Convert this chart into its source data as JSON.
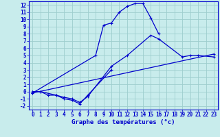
{
  "background_color": "#c8ecec",
  "grid_color": "#9ecece",
  "line_color": "#0000cc",
  "xlabel": "Graphe des températures (°c)",
  "xlim": [
    -0.5,
    23.5
  ],
  "ylim": [
    -2.5,
    12.5
  ],
  "yticks": [
    -2,
    -1,
    0,
    1,
    2,
    3,
    4,
    5,
    6,
    7,
    8,
    9,
    10,
    11,
    12
  ],
  "xticks": [
    0,
    1,
    2,
    3,
    4,
    5,
    6,
    7,
    8,
    9,
    10,
    11,
    12,
    13,
    14,
    15,
    16,
    17,
    18,
    19,
    20,
    21,
    22,
    23
  ],
  "series": [
    {
      "x": [
        0,
        1,
        2,
        3,
        4,
        5,
        6,
        7,
        10
      ],
      "y": [
        0,
        0,
        -0.5,
        -0.5,
        -1,
        -1.2,
        -1.7,
        -0.5,
        3.0
      ]
    },
    {
      "x": [
        0,
        1,
        3,
        4,
        5,
        6,
        7,
        10,
        12,
        15,
        16,
        19,
        20,
        21,
        23
      ],
      "y": [
        0,
        0,
        -0.5,
        -0.8,
        -1.0,
        -1.5,
        -0.7,
        3.5,
        5.0,
        7.8,
        7.3,
        4.8,
        5.0,
        5.0,
        4.8
      ]
    },
    {
      "x": [
        0,
        23
      ],
      "y": [
        -0.2,
        5.2
      ]
    },
    {
      "x": [
        0,
        8,
        9,
        10,
        11,
        12,
        13,
        14,
        15,
        16
      ],
      "y": [
        -0.2,
        5.0,
        9.2,
        9.5,
        11.0,
        11.8,
        12.2,
        12.2,
        10.2,
        8.0
      ]
    }
  ],
  "tick_fontsize": 5.5,
  "xlabel_fontsize": 6.5,
  "lw": 0.9,
  "marker_size": 3.0
}
